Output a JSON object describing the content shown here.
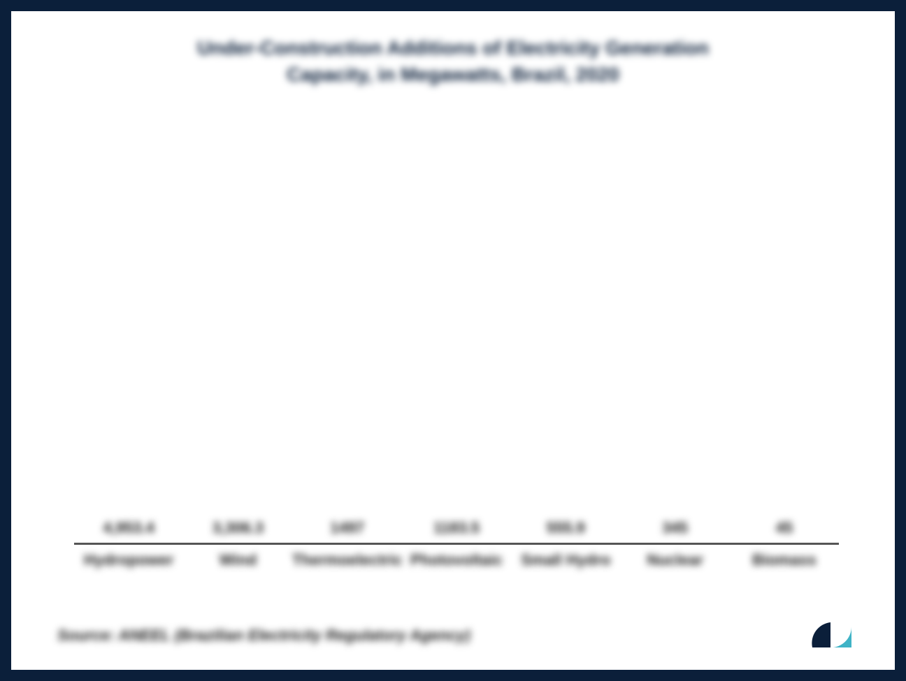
{
  "chart": {
    "type": "bar",
    "title_line1": "Under-Construction Additions of Electricity Generation",
    "title_line2": "Capacity, in Megawatts, Brazil, 2020",
    "title_fontsize": 28,
    "title_color": "#0b1f3a",
    "categories": [
      "Hydropower",
      "Wind",
      "Thermoelectric",
      "Photovoltaic",
      "Small Hydro",
      "Nuclear",
      "Biomass"
    ],
    "values": [
      4953.4,
      3306.3,
      1497.0,
      1183.5,
      555.9,
      345.0,
      45.0
    ],
    "value_labels": [
      "4,953.4",
      "3,306.3",
      "1497",
      "1183.5",
      "555.9",
      "345",
      "45"
    ],
    "bar_color": "#56b4c4",
    "background_color": "#ffffff",
    "frame_border_color": "#0b1f3a",
    "axis_color": "#555555",
    "label_fontsize": 22,
    "tick_fontsize": 22,
    "ylim": [
      0,
      5200
    ],
    "bar_width_ratio": 0.6,
    "source_text": "Source: ANEEL (Brazilian Electricity Regulatory Agency)",
    "source_fontsize": 22,
    "logo_colors": {
      "dark": "#0b1f3a",
      "light": "#3fb3c6"
    }
  }
}
